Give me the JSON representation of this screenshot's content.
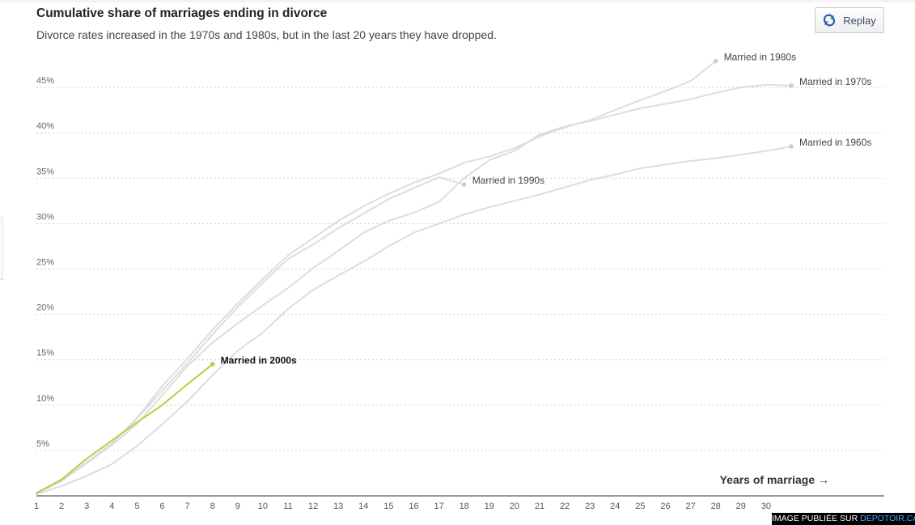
{
  "header": {
    "title": "Cumulative share of marriages ending in divorce",
    "subtitle": "Divorce rates increased in the 1970s and 1980s, but in the last 20 years they have dropped."
  },
  "controls": {
    "replay_label": "Replay",
    "replay_icon": "replay-icon"
  },
  "watermark": {
    "prefix": "IMAGE PUBLIÉE SUR ",
    "site": "DEPOTOIR.CA"
  },
  "colors": {
    "background_series": "#dddddd",
    "highlight_series": "#b3d23c",
    "gridline": "#cfcfcf",
    "axis": "#333333",
    "label_text": "#444444"
  },
  "chart_data": {
    "type": "line",
    "title": "Cumulative share of marriages ending in divorce",
    "subtitle": "Divorce rates increased in the 1970s and 1980s, but in the last 20 years they have dropped.",
    "xlabel": "Years of marriage →",
    "ylabel": "",
    "xlim": [
      1,
      32
    ],
    "ylim": [
      0,
      50
    ],
    "x_ticks": [
      1,
      2,
      3,
      4,
      5,
      6,
      7,
      8,
      9,
      10,
      11,
      12,
      13,
      14,
      15,
      16,
      17,
      18,
      19,
      20,
      21,
      22,
      23,
      24,
      25,
      26,
      27,
      28,
      29,
      30
    ],
    "y_ticks": [
      5,
      10,
      15,
      20,
      25,
      30,
      35,
      40,
      45
    ],
    "y_tick_labels": [
      "5%",
      "10%",
      "15%",
      "20%",
      "25%",
      "30%",
      "35%",
      "40%",
      "45%"
    ],
    "grid": true,
    "legend": "inline-end-labels",
    "series": [
      {
        "name": "Married in 1960s",
        "highlight": false,
        "x": [
          1,
          2,
          3,
          4,
          5,
          6,
          7,
          8,
          9,
          10,
          11,
          12,
          13,
          14,
          15,
          16,
          17,
          18,
          19,
          20,
          21,
          22,
          23,
          24,
          25,
          26,
          27,
          28,
          29,
          30,
          31
        ],
        "y": [
          0.2,
          1.1,
          2.2,
          3.5,
          5.5,
          7.9,
          10.4,
          13.3,
          16,
          18,
          20.6,
          22.7,
          24.3,
          25.8,
          27.5,
          29,
          30,
          31,
          31.8,
          32.5,
          33.2,
          34,
          34.8,
          35.4,
          36.1,
          36.5,
          36.9,
          37.2,
          37.6,
          38,
          38.5
        ]
      },
      {
        "name": "Married in 1970s",
        "highlight": false,
        "x": [
          1,
          2,
          3,
          4,
          5,
          6,
          7,
          8,
          9,
          10,
          11,
          12,
          13,
          14,
          15,
          16,
          17,
          18,
          19,
          20,
          21,
          22,
          23,
          24,
          25,
          26,
          27,
          28,
          29,
          30,
          31
        ],
        "y": [
          0.3,
          1.6,
          3.6,
          5.6,
          7.9,
          11.1,
          14.3,
          16.9,
          19,
          21,
          22.9,
          25.1,
          27,
          29,
          30.3,
          31.2,
          32.4,
          35,
          37,
          38,
          39.8,
          40.7,
          41.3,
          42,
          42.7,
          43.2,
          43.7,
          44.4,
          45,
          45.3,
          45.2
        ]
      },
      {
        "name": "Married in 1980s",
        "highlight": false,
        "x": [
          1,
          2,
          3,
          4,
          5,
          6,
          7,
          8,
          9,
          10,
          11,
          12,
          13,
          14,
          15,
          16,
          17,
          18,
          19,
          20,
          21,
          22,
          23,
          24,
          25,
          26,
          27,
          28
        ],
        "y": [
          0.3,
          1.7,
          3.7,
          5.8,
          8.6,
          12.1,
          15.1,
          18.3,
          21.2,
          23.9,
          26.5,
          28.4,
          30.3,
          31.9,
          33.3,
          34.5,
          35.5,
          36.7,
          37.4,
          38.3,
          39.6,
          40.6,
          41.4,
          42.5,
          43.6,
          44.6,
          45.7,
          47.9
        ]
      },
      {
        "name": "Married in 1990s",
        "highlight": false,
        "x": [
          1,
          2,
          3,
          4,
          5,
          6,
          7,
          8,
          9,
          10,
          11,
          12,
          13,
          14,
          15,
          16,
          17,
          18
        ],
        "y": [
          0.3,
          1.7,
          3.7,
          5.8,
          8.5,
          11.6,
          14.6,
          17.8,
          20.8,
          23.5,
          26.1,
          27.7,
          29.5,
          31.1,
          32.7,
          33.9,
          35.1,
          34.3
        ]
      },
      {
        "name": "Married in 2000s",
        "highlight": true,
        "x": [
          1,
          2,
          3,
          4,
          5,
          6,
          7,
          8
        ],
        "y": [
          0.3,
          1.8,
          4.1,
          6.1,
          8.1,
          10,
          12.3,
          14.5
        ]
      }
    ]
  }
}
